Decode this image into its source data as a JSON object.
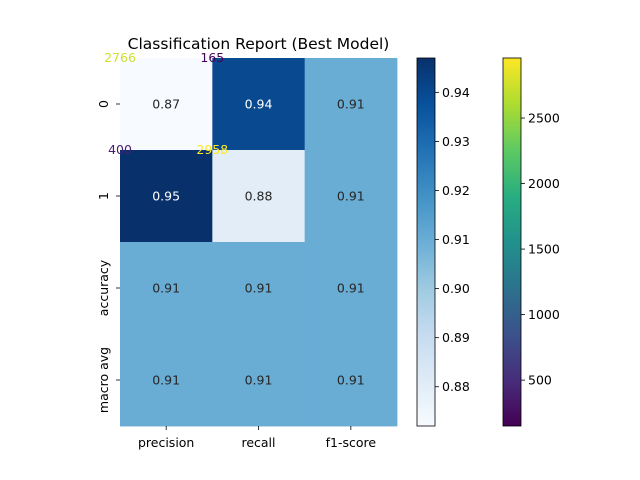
{
  "chart_data": {
    "type": "heatmap",
    "title": "Classification Report (Best Model)",
    "xlabel": "",
    "ylabel": "",
    "x_categories": [
      "precision",
      "recall",
      "f1-score"
    ],
    "y_categories": [
      "0",
      "1",
      "accuracy",
      "macro avg"
    ],
    "matrix": [
      [
        0.87,
        0.94,
        0.91
      ],
      [
        0.95,
        0.88,
        0.91
      ],
      [
        0.91,
        0.91,
        0.91
      ],
      [
        0.91,
        0.91,
        0.91
      ]
    ],
    "cell_labels": [
      [
        "0.87",
        "0.94",
        "0.91"
      ],
      [
        "0.95",
        "0.88",
        "0.91"
      ],
      [
        "0.91",
        "0.91",
        "0.91"
      ],
      [
        "0.91",
        "0.91",
        "0.91"
      ]
    ],
    "colormap": "Blues",
    "color_range": [
      0.872,
      0.947
    ],
    "colorbar_ticks": [
      "0.88",
      "0.89",
      "0.90",
      "0.91",
      "0.92",
      "0.93",
      "0.94"
    ],
    "overlay": {
      "description_counts": "confusion-matrix counts drawn at cell corners",
      "points": [
        {
          "row": 0,
          "col": 0,
          "label": "2766",
          "value": 2766
        },
        {
          "row": 0,
          "col": 1,
          "label": "165",
          "value": 165
        },
        {
          "row": 1,
          "col": 0,
          "label": "400",
          "value": 400
        },
        {
          "row": 1,
          "col": 1,
          "label": "2958",
          "value": 2958
        }
      ],
      "colormap": "viridis",
      "color_range": [
        150,
        2958
      ],
      "colorbar_ticks": [
        "500",
        "1000",
        "1500",
        "2000",
        "2500"
      ]
    }
  }
}
